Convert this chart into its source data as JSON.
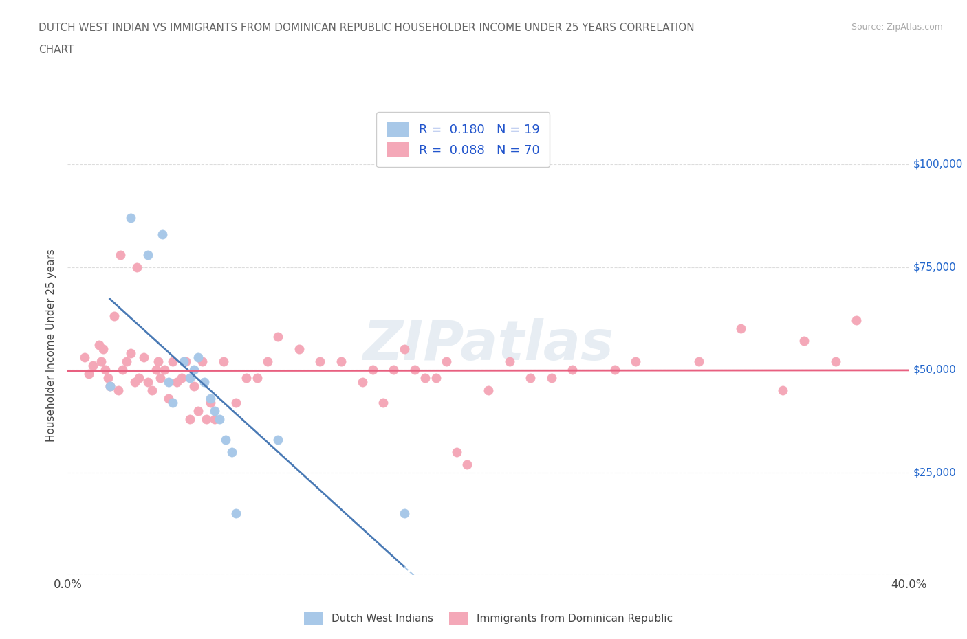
{
  "title_line1": "DUTCH WEST INDIAN VS IMMIGRANTS FROM DOMINICAN REPUBLIC HOUSEHOLDER INCOME UNDER 25 YEARS CORRELATION",
  "title_line2": "CHART",
  "source": "Source: ZipAtlas.com",
  "ylabel": "Householder Income Under 25 years",
  "xlim": [
    0.0,
    0.4
  ],
  "ylim": [
    0,
    112000
  ],
  "background_color": "#ffffff",
  "grid_color": "#dddddd",
  "blue_scatter_color": "#a8c8e8",
  "blue_line_color": "#4a7ab5",
  "pink_scatter_color": "#f4a8b8",
  "pink_line_color": "#e86080",
  "R_blue": 0.18,
  "N_blue": 19,
  "R_pink": 0.088,
  "N_pink": 70,
  "legend_label_blue": "Dutch West Indians",
  "legend_label_pink": "Immigrants from Dominican Republic",
  "legend_text_color": "#2255cc",
  "ytick_vals": [
    0,
    25000,
    50000,
    75000,
    100000
  ],
  "ytick_labels": [
    "",
    "$25,000",
    "$50,000",
    "$75,000",
    "$100,000"
  ],
  "blue_x": [
    0.02,
    0.03,
    0.038,
    0.045,
    0.048,
    0.05,
    0.055,
    0.058,
    0.06,
    0.062,
    0.065,
    0.068,
    0.07,
    0.072,
    0.075,
    0.078,
    0.08,
    0.1,
    0.16
  ],
  "blue_y": [
    46000,
    87000,
    78000,
    83000,
    47000,
    42000,
    52000,
    48000,
    50000,
    53000,
    47000,
    43000,
    40000,
    38000,
    33000,
    30000,
    15000,
    33000,
    15000
  ],
  "pink_x": [
    0.008,
    0.01,
    0.012,
    0.015,
    0.016,
    0.017,
    0.018,
    0.019,
    0.02,
    0.022,
    0.024,
    0.025,
    0.026,
    0.028,
    0.03,
    0.032,
    0.033,
    0.034,
    0.036,
    0.038,
    0.04,
    0.042,
    0.043,
    0.044,
    0.046,
    0.048,
    0.05,
    0.052,
    0.054,
    0.056,
    0.058,
    0.06,
    0.062,
    0.064,
    0.066,
    0.068,
    0.07,
    0.074,
    0.08,
    0.085,
    0.09,
    0.095,
    0.1,
    0.11,
    0.12,
    0.13,
    0.14,
    0.145,
    0.15,
    0.155,
    0.16,
    0.165,
    0.17,
    0.175,
    0.18,
    0.185,
    0.19,
    0.2,
    0.21,
    0.22,
    0.23,
    0.24,
    0.26,
    0.27,
    0.3,
    0.32,
    0.34,
    0.35,
    0.365,
    0.375
  ],
  "pink_y": [
    53000,
    49000,
    51000,
    56000,
    52000,
    55000,
    50000,
    48000,
    46000,
    63000,
    45000,
    78000,
    50000,
    52000,
    54000,
    47000,
    75000,
    48000,
    53000,
    47000,
    45000,
    50000,
    52000,
    48000,
    50000,
    43000,
    52000,
    47000,
    48000,
    52000,
    38000,
    46000,
    40000,
    52000,
    38000,
    42000,
    38000,
    52000,
    42000,
    48000,
    48000,
    52000,
    58000,
    55000,
    52000,
    52000,
    47000,
    50000,
    42000,
    50000,
    55000,
    50000,
    48000,
    48000,
    52000,
    30000,
    27000,
    45000,
    52000,
    48000,
    48000,
    50000,
    50000,
    52000,
    52000,
    60000,
    45000,
    57000,
    52000,
    62000
  ]
}
